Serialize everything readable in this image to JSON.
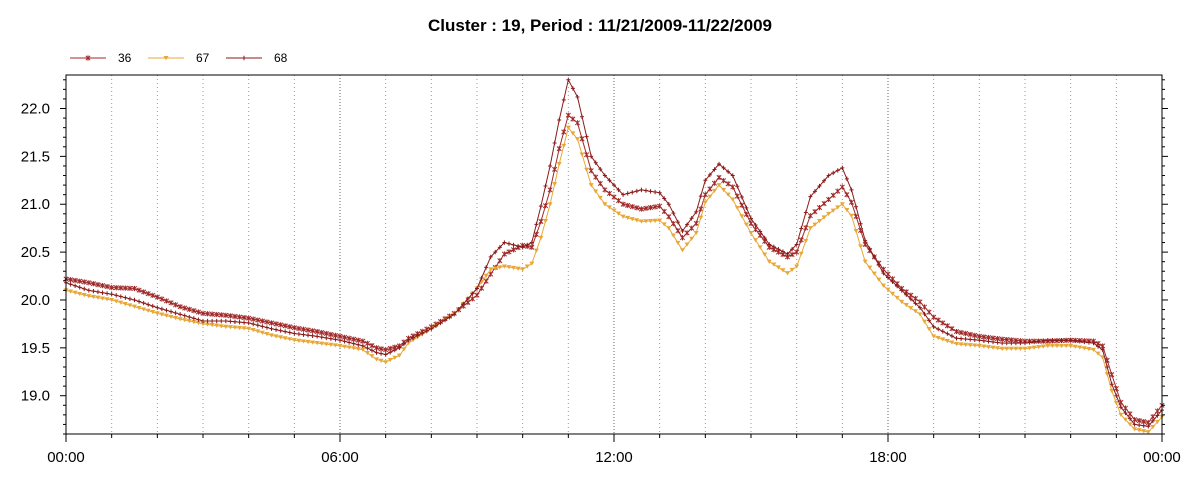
{
  "chart_data": {
    "type": "line",
    "title": "Cluster : 19, Period : 11/21/2009-11/22/2009",
    "xlabel": "",
    "ylabel": "",
    "x_unit": "hours",
    "xlim": [
      0,
      24
    ],
    "ylim": [
      18.6,
      22.35
    ],
    "x_ticks": [
      {
        "value": 0,
        "label": "00:00"
      },
      {
        "value": 6,
        "label": "06:00"
      },
      {
        "value": 12,
        "label": "12:00"
      },
      {
        "value": 18,
        "label": "18:00"
      },
      {
        "value": 24,
        "label": "00:00"
      }
    ],
    "y_ticks": [
      {
        "value": 19.0,
        "label": "19.0"
      },
      {
        "value": 19.5,
        "label": "19.5"
      },
      {
        "value": 20.0,
        "label": "20.0"
      },
      {
        "value": 20.5,
        "label": "20.5"
      },
      {
        "value": 21.0,
        "label": "21.0"
      },
      {
        "value": 21.5,
        "label": "21.5"
      },
      {
        "value": 22.0,
        "label": "22.0"
      }
    ],
    "grid": "vertical dotted",
    "legend_position": "top-left",
    "series": [
      {
        "name": "36",
        "color": "#a02828",
        "marker": "star",
        "points": [
          [
            0,
            20.22
          ],
          [
            0.5,
            20.18
          ],
          [
            1,
            20.13
          ],
          [
            1.5,
            20.12
          ],
          [
            2,
            20.03
          ],
          [
            2.5,
            19.93
          ],
          [
            3,
            19.86
          ],
          [
            3.5,
            19.84
          ],
          [
            4,
            19.81
          ],
          [
            4.5,
            19.76
          ],
          [
            5,
            19.71
          ],
          [
            5.5,
            19.67
          ],
          [
            6,
            19.62
          ],
          [
            6.5,
            19.57
          ],
          [
            6.8,
            19.5
          ],
          [
            7,
            19.48
          ],
          [
            7.3,
            19.52
          ],
          [
            7.5,
            19.6
          ],
          [
            8,
            19.72
          ],
          [
            8.5,
            19.86
          ],
          [
            9,
            20.05
          ],
          [
            9.3,
            20.27
          ],
          [
            9.6,
            20.48
          ],
          [
            10,
            20.57
          ],
          [
            10.2,
            20.55
          ],
          [
            10.4,
            20.82
          ],
          [
            10.6,
            21.15
          ],
          [
            10.8,
            21.58
          ],
          [
            11.0,
            21.93
          ],
          [
            11.2,
            21.85
          ],
          [
            11.5,
            21.35
          ],
          [
            11.8,
            21.15
          ],
          [
            12.2,
            21.0
          ],
          [
            12.6,
            20.95
          ],
          [
            13,
            20.98
          ],
          [
            13.2,
            20.87
          ],
          [
            13.5,
            20.65
          ],
          [
            13.8,
            20.8
          ],
          [
            14,
            21.1
          ],
          [
            14.3,
            21.28
          ],
          [
            14.6,
            21.18
          ],
          [
            15,
            20.8
          ],
          [
            15.4,
            20.55
          ],
          [
            15.8,
            20.45
          ],
          [
            16,
            20.5
          ],
          [
            16.3,
            20.88
          ],
          [
            16.7,
            21.05
          ],
          [
            17,
            21.18
          ],
          [
            17.2,
            21.02
          ],
          [
            17.5,
            20.58
          ],
          [
            17.9,
            20.32
          ],
          [
            18.3,
            20.12
          ],
          [
            18.7,
            19.98
          ],
          [
            19,
            19.82
          ],
          [
            19.5,
            19.67
          ],
          [
            20,
            19.62
          ],
          [
            20.5,
            19.59
          ],
          [
            21,
            19.57
          ],
          [
            21.5,
            19.57
          ],
          [
            22,
            19.58
          ],
          [
            22.5,
            19.57
          ],
          [
            22.7,
            19.52
          ],
          [
            22.9,
            19.22
          ],
          [
            23.1,
            18.93
          ],
          [
            23.4,
            18.75
          ],
          [
            23.7,
            18.72
          ],
          [
            24,
            18.9
          ]
        ]
      },
      {
        "name": "67",
        "color": "#e8a838",
        "marker": "triangle-down",
        "points": [
          [
            0,
            20.1
          ],
          [
            0.5,
            20.04
          ],
          [
            1,
            20.0
          ],
          [
            1.5,
            19.93
          ],
          [
            2,
            19.86
          ],
          [
            2.5,
            19.8
          ],
          [
            3,
            19.75
          ],
          [
            3.5,
            19.72
          ],
          [
            4,
            19.7
          ],
          [
            4.5,
            19.63
          ],
          [
            5,
            19.58
          ],
          [
            5.5,
            19.55
          ],
          [
            6,
            19.52
          ],
          [
            6.5,
            19.48
          ],
          [
            6.8,
            19.38
          ],
          [
            7,
            19.35
          ],
          [
            7.3,
            19.42
          ],
          [
            7.5,
            19.55
          ],
          [
            8,
            19.7
          ],
          [
            8.5,
            19.85
          ],
          [
            9,
            20.12
          ],
          [
            9.3,
            20.32
          ],
          [
            9.6,
            20.35
          ],
          [
            10,
            20.32
          ],
          [
            10.2,
            20.38
          ],
          [
            10.4,
            20.65
          ],
          [
            10.6,
            21.0
          ],
          [
            10.8,
            21.42
          ],
          [
            11.0,
            21.8
          ],
          [
            11.2,
            21.68
          ],
          [
            11.5,
            21.2
          ],
          [
            11.8,
            21.0
          ],
          [
            12.2,
            20.87
          ],
          [
            12.6,
            20.82
          ],
          [
            13,
            20.83
          ],
          [
            13.2,
            20.75
          ],
          [
            13.5,
            20.52
          ],
          [
            13.8,
            20.7
          ],
          [
            14,
            21.02
          ],
          [
            14.3,
            21.2
          ],
          [
            14.6,
            21.05
          ],
          [
            15,
            20.7
          ],
          [
            15.4,
            20.4
          ],
          [
            15.8,
            20.28
          ],
          [
            16,
            20.35
          ],
          [
            16.3,
            20.75
          ],
          [
            16.7,
            20.9
          ],
          [
            17,
            21.0
          ],
          [
            17.2,
            20.88
          ],
          [
            17.5,
            20.4
          ],
          [
            17.9,
            20.15
          ],
          [
            18.3,
            19.98
          ],
          [
            18.7,
            19.85
          ],
          [
            19,
            19.62
          ],
          [
            19.5,
            19.54
          ],
          [
            20,
            19.52
          ],
          [
            20.5,
            19.49
          ],
          [
            21,
            19.49
          ],
          [
            21.5,
            19.52
          ],
          [
            22,
            19.52
          ],
          [
            22.5,
            19.48
          ],
          [
            22.7,
            19.4
          ],
          [
            22.9,
            19.05
          ],
          [
            23.1,
            18.8
          ],
          [
            23.4,
            18.65
          ],
          [
            23.7,
            18.62
          ],
          [
            24,
            18.78
          ]
        ]
      },
      {
        "name": "68",
        "color": "#8b1a1a",
        "marker": "plus",
        "points": [
          [
            0,
            20.18
          ],
          [
            0.5,
            20.1
          ],
          [
            1,
            20.06
          ],
          [
            1.5,
            20.0
          ],
          [
            2,
            19.92
          ],
          [
            2.5,
            19.85
          ],
          [
            3,
            19.78
          ],
          [
            3.5,
            19.78
          ],
          [
            4,
            19.76
          ],
          [
            4.5,
            19.7
          ],
          [
            5,
            19.65
          ],
          [
            5.5,
            19.62
          ],
          [
            6,
            19.58
          ],
          [
            6.5,
            19.52
          ],
          [
            6.8,
            19.45
          ],
          [
            7,
            19.43
          ],
          [
            7.3,
            19.5
          ],
          [
            7.5,
            19.58
          ],
          [
            8,
            19.7
          ],
          [
            8.5,
            19.85
          ],
          [
            9,
            20.12
          ],
          [
            9.3,
            20.45
          ],
          [
            9.6,
            20.6
          ],
          [
            10,
            20.55
          ],
          [
            10.2,
            20.6
          ],
          [
            10.4,
            20.98
          ],
          [
            10.6,
            21.4
          ],
          [
            10.8,
            21.88
          ],
          [
            11.0,
            22.3
          ],
          [
            11.2,
            22.12
          ],
          [
            11.5,
            21.5
          ],
          [
            11.8,
            21.3
          ],
          [
            12.2,
            21.1
          ],
          [
            12.6,
            21.15
          ],
          [
            13,
            21.12
          ],
          [
            13.2,
            21.0
          ],
          [
            13.5,
            20.72
          ],
          [
            13.8,
            20.92
          ],
          [
            14,
            21.25
          ],
          [
            14.3,
            21.42
          ],
          [
            14.6,
            21.3
          ],
          [
            15,
            20.85
          ],
          [
            15.4,
            20.58
          ],
          [
            15.8,
            20.48
          ],
          [
            16,
            20.58
          ],
          [
            16.3,
            21.08
          ],
          [
            16.7,
            21.3
          ],
          [
            17,
            21.38
          ],
          [
            17.2,
            21.15
          ],
          [
            17.5,
            20.62
          ],
          [
            17.9,
            20.28
          ],
          [
            18.3,
            20.1
          ],
          [
            18.7,
            19.92
          ],
          [
            19,
            19.72
          ],
          [
            19.5,
            19.6
          ],
          [
            20,
            19.58
          ],
          [
            20.5,
            19.55
          ],
          [
            21,
            19.55
          ],
          [
            21.5,
            19.58
          ],
          [
            22,
            19.58
          ],
          [
            22.5,
            19.55
          ],
          [
            22.7,
            19.48
          ],
          [
            22.9,
            19.12
          ],
          [
            23.1,
            18.88
          ],
          [
            23.4,
            18.7
          ],
          [
            23.7,
            18.68
          ],
          [
            24,
            18.85
          ]
        ]
      }
    ]
  }
}
